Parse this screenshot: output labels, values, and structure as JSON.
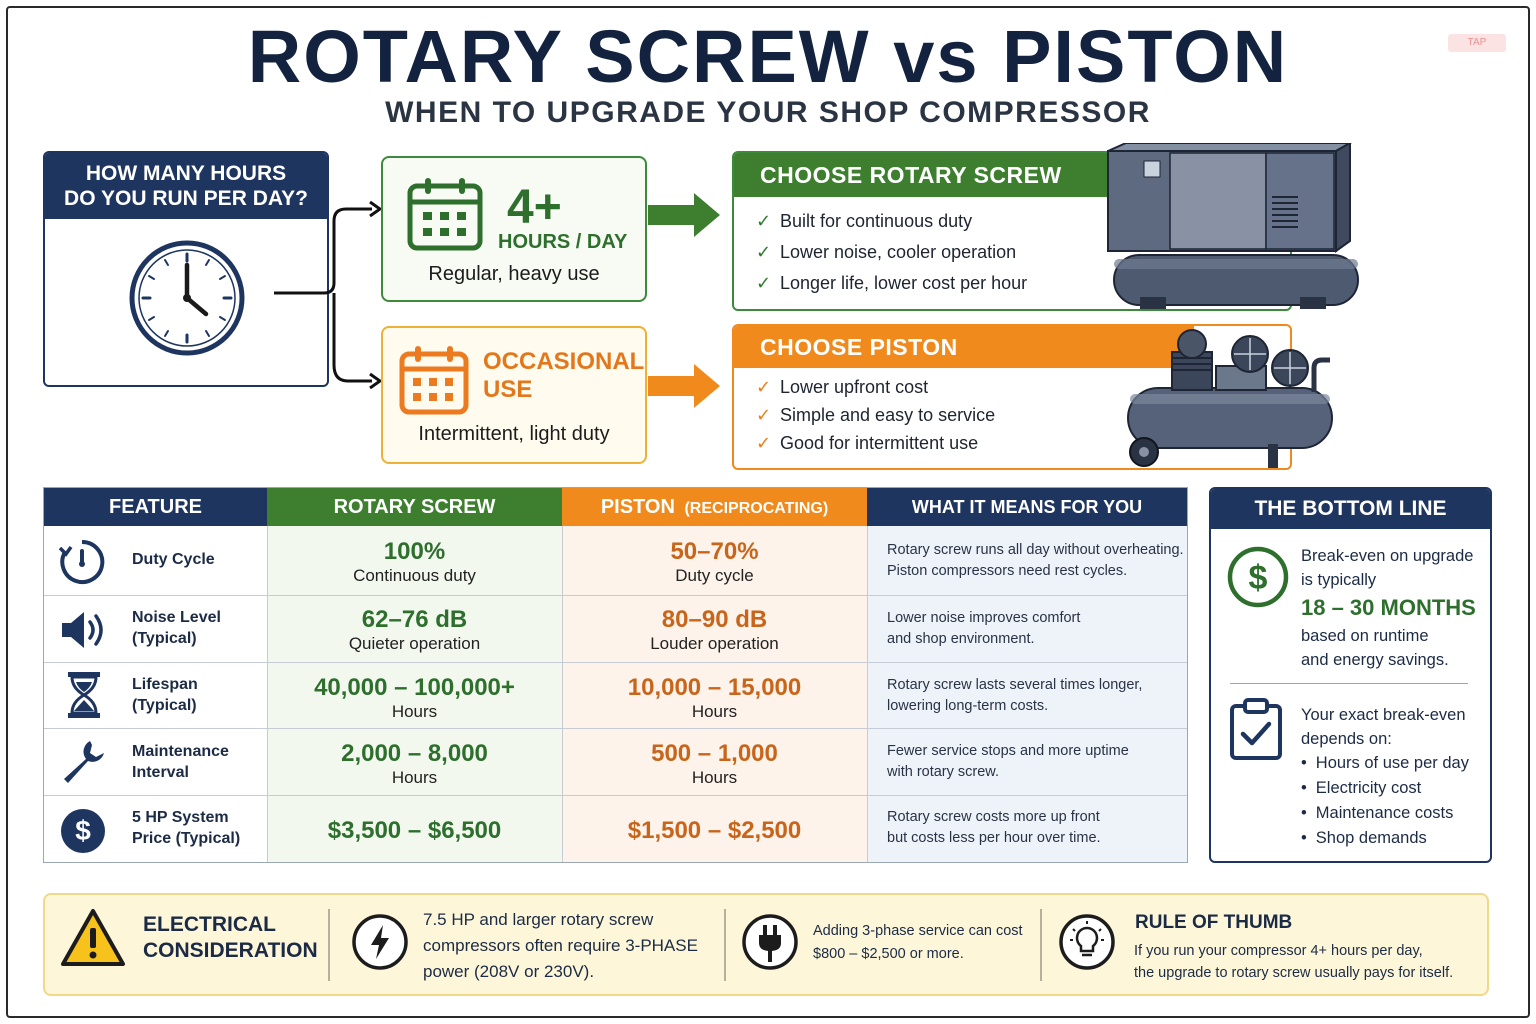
{
  "header": {
    "title": "ROTARY SCREW vs PISTON",
    "subtitle": "WHEN TO UPGRADE YOUR SHOP COMPRESSOR",
    "corner_tag": "TAP"
  },
  "question": {
    "line1": "HOW MANY HOURS",
    "line2": "DO YOU RUN PER DAY?"
  },
  "options": {
    "heavy": {
      "big": "4+",
      "unit": "HOURS / DAY",
      "desc": "Regular, heavy use"
    },
    "light": {
      "big1": "OCCASIONAL",
      "big2": "USE",
      "desc": "Intermittent, light duty"
    }
  },
  "choose_rotary": {
    "title": "CHOOSE ROTARY SCREW",
    "items": [
      "Built for continuous duty",
      "Lower noise, cooler operation",
      "Longer life, lower cost per hour"
    ]
  },
  "choose_piston": {
    "title": "CHOOSE PISTON",
    "items": [
      "Lower upfront cost",
      "Simple and easy to service",
      "Good for intermittent use"
    ]
  },
  "table": {
    "headers": {
      "feature": "FEATURE",
      "rotary": "ROTARY SCREW",
      "piston": "PISTON",
      "piston_sub": "(RECIPROCATING)",
      "means": "WHAT IT MEANS FOR YOU"
    },
    "rows": [
      {
        "icon": "duty-cycle-icon",
        "label1": "Duty Cycle",
        "label2": "",
        "rotary_big": "100%",
        "rotary_small": "Continuous duty",
        "piston_big": "50–70%",
        "piston_small": "Duty cycle",
        "means1": "Rotary screw runs all day without overheating.",
        "means2": "Piston compressors need rest cycles."
      },
      {
        "icon": "speaker-icon",
        "label1": "Noise Level",
        "label2": "(Typical)",
        "rotary_big": "62–76 dB",
        "rotary_small": "Quieter operation",
        "piston_big": "80–90 dB",
        "piston_small": "Louder operation",
        "means1": "Lower noise improves comfort",
        "means2": "and shop environment."
      },
      {
        "icon": "hourglass-icon",
        "label1": "Lifespan",
        "label2": "(Typical)",
        "rotary_big": "40,000 – 100,000+",
        "rotary_small": "Hours",
        "piston_big": "10,000 – 15,000",
        "piston_small": "Hours",
        "means1": "Rotary screw lasts several times longer,",
        "means2": "lowering long-term costs."
      },
      {
        "icon": "wrench-icon",
        "label1": "Maintenance",
        "label2": "Interval",
        "rotary_big": "2,000 – 8,000",
        "rotary_small": "Hours",
        "piston_big": "500 – 1,000",
        "piston_small": "Hours",
        "means1": "Fewer service stops and more uptime",
        "means2": "with rotary screw."
      },
      {
        "icon": "dollar-icon",
        "label1": "5 HP System",
        "label2": "Price (Typical)",
        "rotary_big": "$3,500 – $6,500",
        "rotary_small": "",
        "piston_big": "$1,500 – $2,500",
        "piston_small": "",
        "means1": "Rotary screw costs more up front",
        "means2": "but costs less per hour over time."
      }
    ]
  },
  "bottom_line": {
    "title": "THE BOTTOM LINE",
    "line1": "Break-even on upgrade",
    "line2": "is typically",
    "months": "18 – 30 MONTHS",
    "line3": "based on runtime",
    "line4": "and energy savings.",
    "depends1": "Your exact break-even",
    "depends2": "depends on:",
    "bullets": [
      "Hours of use per day",
      "Electricity cost",
      "Maintenance costs",
      "Shop demands"
    ]
  },
  "footer": {
    "elec1": "ELECTRICAL",
    "elec2": "CONSIDERATION",
    "phase1": "7.5 HP and larger rotary screw",
    "phase2": "compressors often require 3-PHASE",
    "phase3": "power (208V or 230V).",
    "cost1": "Adding 3-phase service can cost",
    "cost2": "$800 – $2,500 or more.",
    "rule_title": "RULE OF THUMB",
    "rule1": "If you run your compressor 4+ hours per day,",
    "rule2": "the upgrade to rotary screw usually pays for itself."
  },
  "colors": {
    "navy": "#1e3560",
    "green": "#3d7f2f",
    "orange": "#f08a1d"
  }
}
